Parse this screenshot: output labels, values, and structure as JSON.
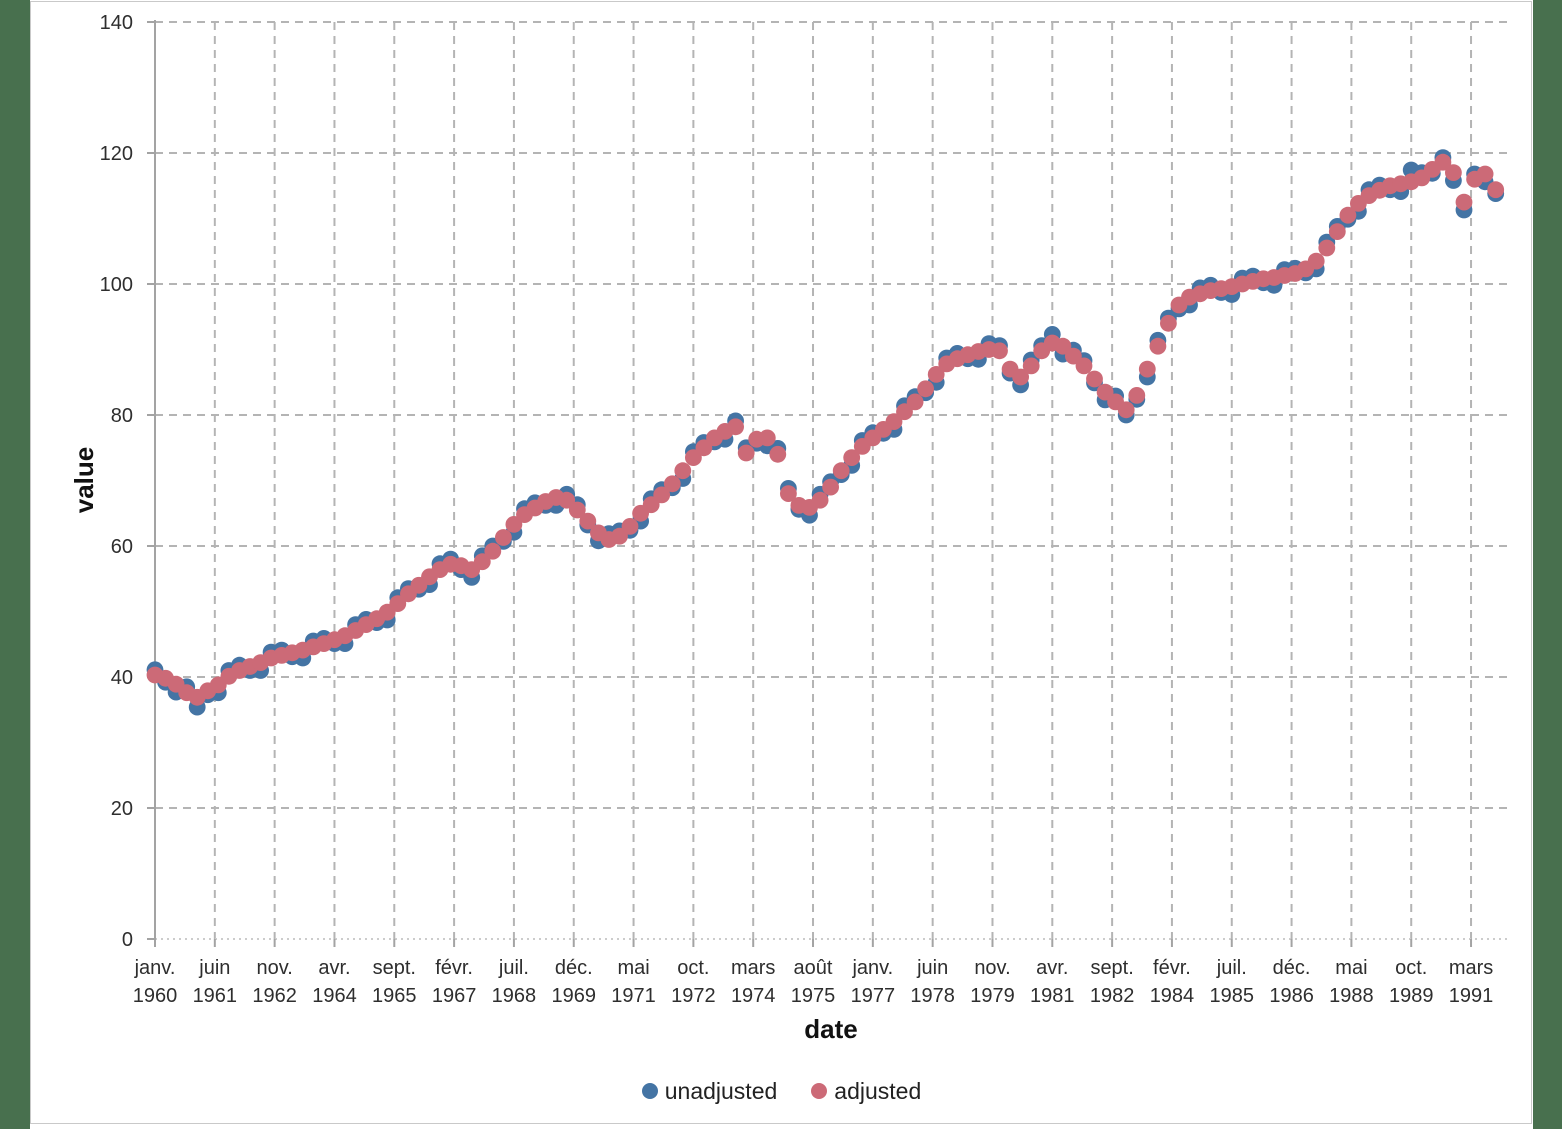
{
  "background_color": "#48704E",
  "page_color": "#ffffff",
  "chart_data": {
    "type": "scatter",
    "title": "",
    "xlabel": "date",
    "ylabel": "value",
    "ylim": [
      0,
      140
    ],
    "y_ticks": [
      0,
      20,
      40,
      60,
      80,
      100,
      120,
      140
    ],
    "grid": "dashed horizontal and vertical gridlines",
    "legend_position": "bottom-center",
    "x_ticks": [
      {
        "month": "janv.",
        "year": "1960",
        "value": 1960.0
      },
      {
        "month": "juin",
        "year": "1961",
        "value": 1961.4167
      },
      {
        "month": "nov.",
        "year": "1962",
        "value": 1962.8333
      },
      {
        "month": "avr.",
        "year": "1964",
        "value": 1964.25
      },
      {
        "month": "sept.",
        "year": "1965",
        "value": 1965.6667
      },
      {
        "month": "févr.",
        "year": "1967",
        "value": 1967.0833
      },
      {
        "month": "juil.",
        "year": "1968",
        "value": 1968.5
      },
      {
        "month": "déc.",
        "year": "1969",
        "value": 1969.9167
      },
      {
        "month": "mai",
        "year": "1971",
        "value": 1971.3333
      },
      {
        "month": "oct.",
        "year": "1972",
        "value": 1972.75
      },
      {
        "month": "mars",
        "year": "1974",
        "value": 1974.1667
      },
      {
        "month": "août",
        "year": "1975",
        "value": 1975.5833
      },
      {
        "month": "janv.",
        "year": "1977",
        "value": 1977.0
      },
      {
        "month": "juin",
        "year": "1978",
        "value": 1978.4167
      },
      {
        "month": "nov.",
        "year": "1979",
        "value": 1979.8333
      },
      {
        "month": "avr.",
        "year": "1981",
        "value": 1981.25
      },
      {
        "month": "sept.",
        "year": "1982",
        "value": 1982.6667
      },
      {
        "month": "févr.",
        "year": "1984",
        "value": 1984.0833
      },
      {
        "month": "juil.",
        "year": "1985",
        "value": 1985.5
      },
      {
        "month": "déc.",
        "year": "1986",
        "value": 1986.9167
      },
      {
        "month": "mai",
        "year": "1988",
        "value": 1988.3333
      },
      {
        "month": "oct.",
        "year": "1989",
        "value": 1989.75
      },
      {
        "month": "mars",
        "year": "1991",
        "value": 1991.1667
      }
    ],
    "x_start": 1960.0,
    "x_step": 0.25,
    "series": [
      {
        "name": "unadjusted",
        "color": "#4474A4",
        "values": [
          41.1,
          39.2,
          37.7,
          38.5,
          35.4,
          37.3,
          37.6,
          41.0,
          41.8,
          41.0,
          41.0,
          43.8,
          44.1,
          43.1,
          42.9,
          45.5,
          45.9,
          45.1,
          45.1,
          48.0,
          48.8,
          48.3,
          48.7,
          52.1,
          53.5,
          53.4,
          54.1,
          57.3,
          58.0,
          56.4,
          55.2,
          58.5,
          60.0,
          60.7,
          62.1,
          65.7,
          66.6,
          66.2,
          66.2,
          67.9,
          66.3,
          63.2,
          60.8,
          61.9,
          62.3,
          62.4,
          63.8,
          67.2,
          68.6,
          68.9,
          70.3,
          74.4,
          75.8,
          75.9,
          76.3,
          79.1,
          75.0,
          75.7,
          75.3,
          74.9,
          68.8,
          65.6,
          64.7,
          67.9,
          69.8,
          70.9,
          72.3,
          76.1,
          77.3,
          77.2,
          77.8,
          81.4,
          82.8,
          83.4,
          85.0,
          88.7,
          89.4,
          88.6,
          88.5,
          90.9,
          90.6,
          86.4,
          84.6,
          88.4,
          90.6,
          92.3,
          89.3,
          89.9,
          88.3,
          84.9,
          82.3,
          82.9,
          80.0,
          82.4,
          85.8,
          91.4,
          94.8,
          96.2,
          96.8,
          99.4,
          99.8,
          98.7,
          98.4,
          100.9,
          101.2,
          100.2,
          99.8,
          102.2,
          102.4,
          101.7,
          102.3,
          106.4,
          108.8,
          109.9,
          111.1,
          114.4,
          115.1,
          114.4,
          114.1,
          117.4,
          117.0,
          116.9,
          119.3,
          115.8,
          111.3,
          116.8,
          115.6,
          113.8
        ]
      },
      {
        "name": "adjusted",
        "color": "#CC6A77",
        "values": [
          40.3,
          39.8,
          38.9,
          37.6,
          36.9,
          37.9,
          38.8,
          40.1,
          41.0,
          41.6,
          42.2,
          42.9,
          43.3,
          43.7,
          44.1,
          44.6,
          45.1,
          45.7,
          46.3,
          47.1,
          48.0,
          48.9,
          49.9,
          51.2,
          52.7,
          54.0,
          55.3,
          56.4,
          57.2,
          57.0,
          56.4,
          57.6,
          59.2,
          61.3,
          63.3,
          64.8,
          65.8,
          66.8,
          67.4,
          67.0,
          65.5,
          63.8,
          62.0,
          61.0,
          61.5,
          63.0,
          65.0,
          66.3,
          67.8,
          69.5,
          71.5,
          73.5,
          75.0,
          76.5,
          77.5,
          78.2,
          74.2,
          76.3,
          76.5,
          74.0,
          68.0,
          66.2,
          65.9,
          67.0,
          69.0,
          71.5,
          73.5,
          75.2,
          76.5,
          77.8,
          79.0,
          80.5,
          82.0,
          84.0,
          86.2,
          87.8,
          88.6,
          89.2,
          89.7,
          90.0,
          89.8,
          87.0,
          85.8,
          87.5,
          89.8,
          91.0,
          90.5,
          89.0,
          87.5,
          85.5,
          83.5,
          82.0,
          80.8,
          83.0,
          87.0,
          90.5,
          94.0,
          96.8,
          98.0,
          98.5,
          99.0,
          99.3,
          99.6,
          100.0,
          100.4,
          100.8,
          101.0,
          101.3,
          101.6,
          102.3,
          103.5,
          105.5,
          108.0,
          110.5,
          112.3,
          113.5,
          114.3,
          115.0,
          115.3,
          115.6,
          116.2,
          117.5,
          118.6,
          117.0,
          112.5,
          116.0,
          116.8,
          114.4
        ]
      }
    ]
  }
}
